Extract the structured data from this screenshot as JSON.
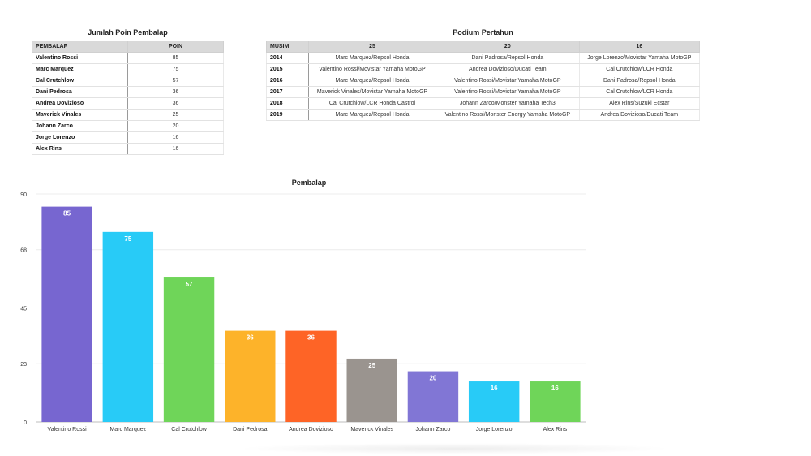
{
  "points_table": {
    "title": "Jumlah Poin Pembalap",
    "headers": [
      "PEMBALAP",
      "POIN"
    ],
    "rows": [
      [
        "Valentino Rossi",
        "85"
      ],
      [
        "Marc Marquez",
        "75"
      ],
      [
        "Cal Crutchlow",
        "57"
      ],
      [
        "Dani Pedrosa",
        "36"
      ],
      [
        "Andrea Dovizioso",
        "36"
      ],
      [
        "Maverick Vinales",
        "25"
      ],
      [
        "Johann Zarco",
        "20"
      ],
      [
        "Jorge Lorenzo",
        "16"
      ],
      [
        "Alex Rins",
        "16"
      ]
    ]
  },
  "podium_table": {
    "title": "Podium Pertahun",
    "headers": [
      "MUSIM",
      "25",
      "20",
      "16"
    ],
    "rows": [
      [
        "2014",
        "Marc Marquez/Repsol Honda",
        "Dani Padrosa/Repsol Honda",
        "Jorge Lorenzo/Movistar Yamaha MotoGP"
      ],
      [
        "2015",
        "Valentino Rossi/Movistar Yamaha MotoGP",
        "Andrea Dovizioso/Ducati Team",
        "Cal Crutchlow/LCR Honda"
      ],
      [
        "2016",
        "Marc Marquez/Repsol Honda",
        "Valentino Rossi/Movistar Yamaha MotoGP",
        "Dani Padrosa/Repsol Honda"
      ],
      [
        "2017",
        "Maverick Vinales/Movistar Yamaha MotoGP",
        "Valentino Rossi/Movistar Yamaha MotoGP",
        "Cal Crutchlow/LCR Honda"
      ],
      [
        "2018",
        "Cal Crutchlow/LCR Honda Castrol",
        "Johann Zarco/Monster Yamaha Tech3",
        "Alex Rins/Suzuki Ecstar"
      ],
      [
        "2019",
        "Marc Marquez/Repsol Honda",
        "Valentino Rossi/Monster Energy Yamaha MotoGP",
        "Andrea Dovizioso/Ducati Team"
      ]
    ]
  },
  "chart_data": {
    "type": "bar",
    "title": "Pembalap",
    "xlabel": "",
    "ylabel": "",
    "categories": [
      "Valentino Rossi",
      "Marc Marquez",
      "Cal Crutchlow",
      "Dani Pedrosa",
      "Andrea Dovizioso",
      "Maverick Vinales",
      "Johann Zarco",
      "Jorge Lorenzo",
      "Alex Rins"
    ],
    "values": [
      85,
      75,
      57,
      36,
      36,
      25,
      20,
      16,
      16
    ],
    "colors": [
      "#7766d0",
      "#28cbf7",
      "#6fd559",
      "#fdb32a",
      "#fe6426",
      "#9a948f",
      "#8176d5",
      "#28cbf7",
      "#6fd559"
    ],
    "yticks": [
      "0",
      "23",
      "45",
      "68",
      "90"
    ],
    "ylim": [
      0,
      90
    ],
    "grid": true,
    "data_labels": true
  }
}
